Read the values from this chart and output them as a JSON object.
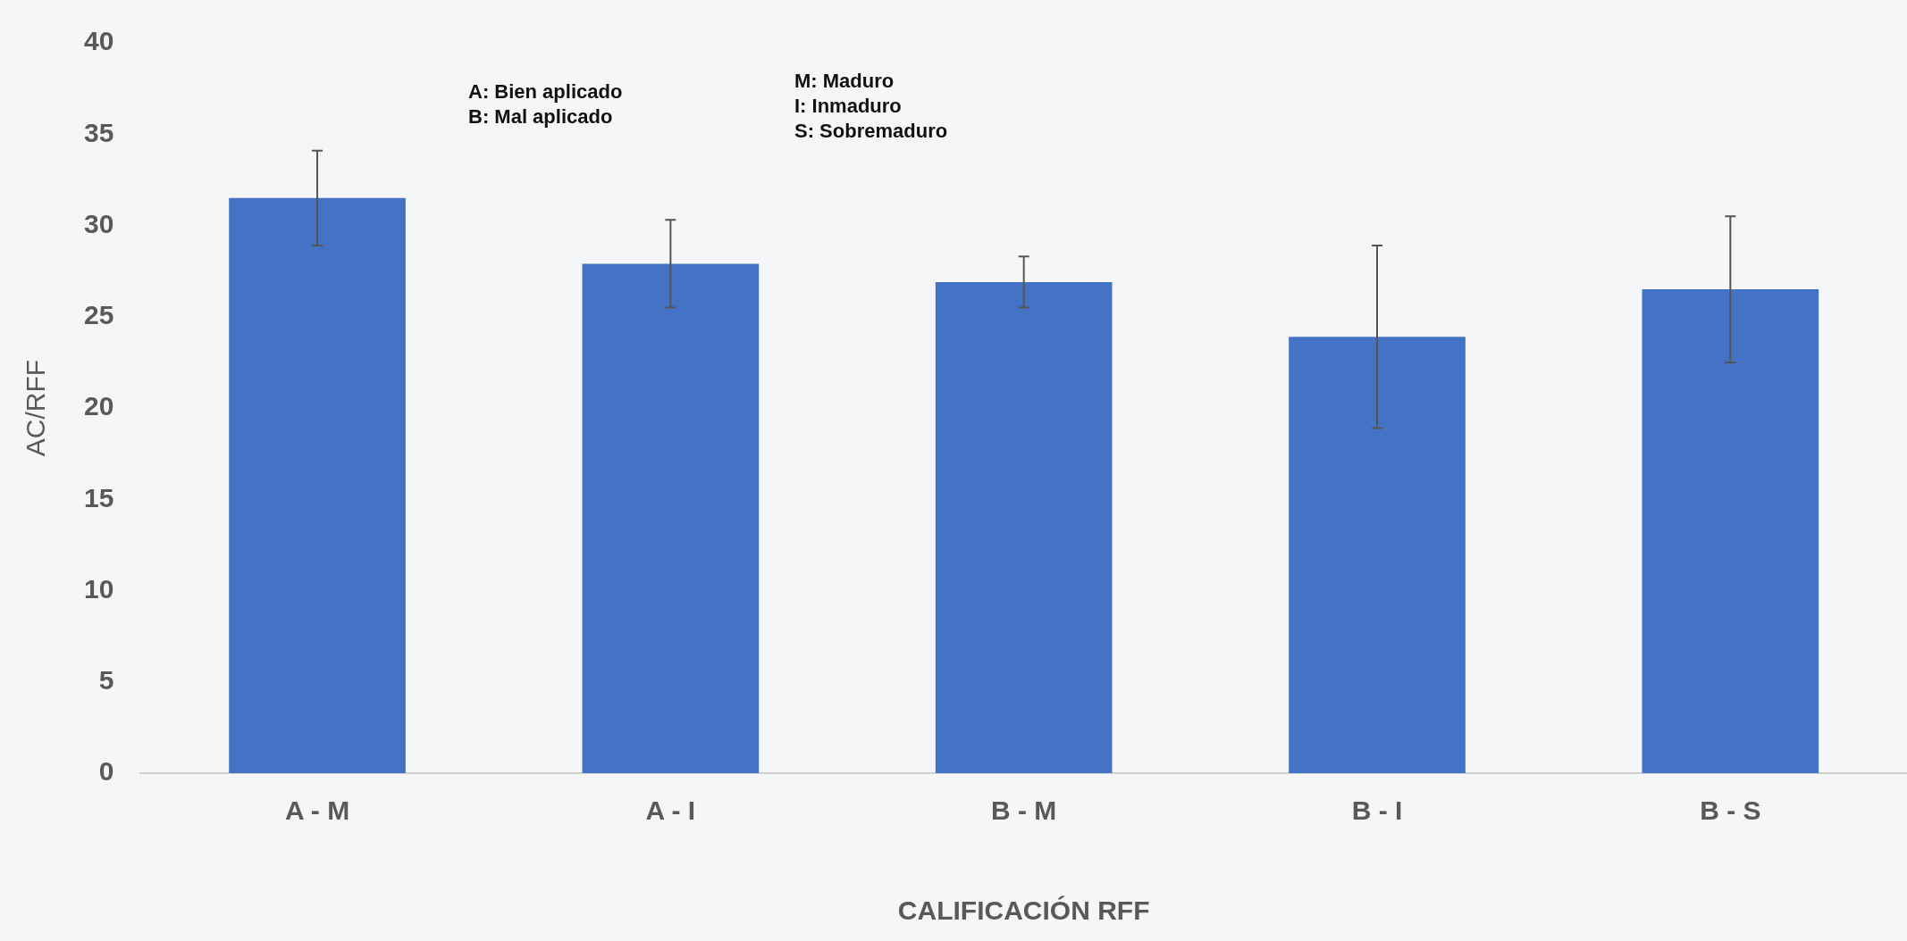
{
  "chart_data": {
    "type": "bar",
    "xlabel": "CALIFICACIÓN RFF",
    "ylabel": "AC/RFF",
    "categories": [
      "A - M",
      "A - I",
      "B - M",
      "B - I",
      "B - S"
    ],
    "values": [
      31.5,
      27.9,
      26.9,
      23.9,
      26.5
    ],
    "errors": [
      2.6,
      2.4,
      1.4,
      5.0,
      4.0
    ],
    "color": "#4472c4",
    "ylim": [
      0,
      40
    ],
    "yticks": [
      0,
      5,
      10,
      15,
      20,
      25,
      30,
      35,
      40
    ],
    "grid": false,
    "legend": false,
    "annotations": [
      "A: Bien aplicado",
      "B: Mal aplicado",
      "M: Maduro",
      "I: Inmaduro",
      "S: Sobremaduro"
    ]
  }
}
